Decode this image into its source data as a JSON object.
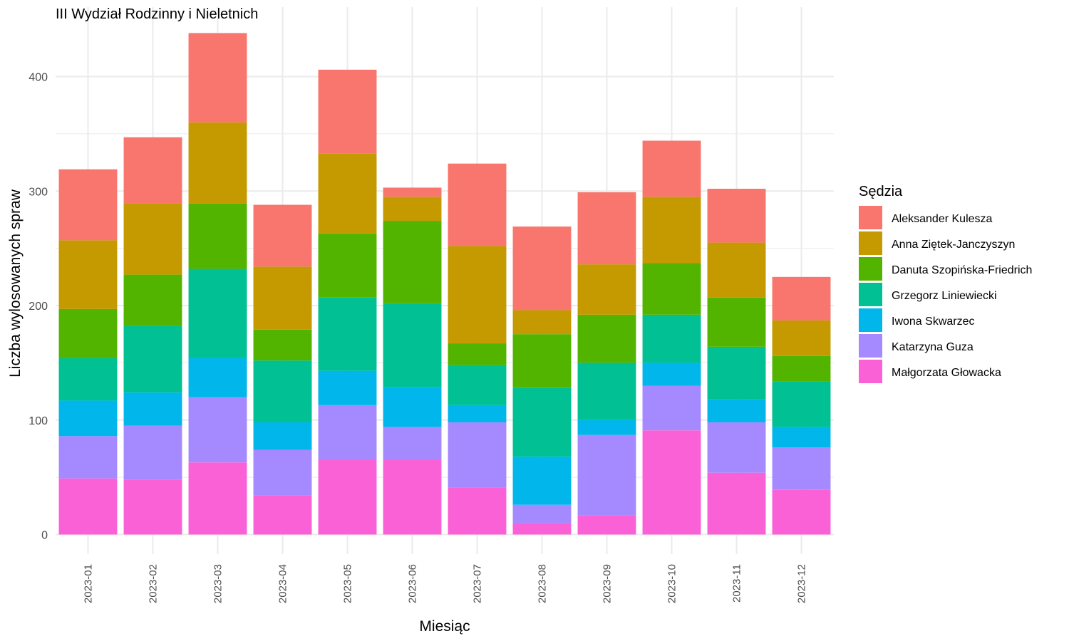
{
  "chart_data": {
    "type": "bar",
    "stacked": true,
    "title": "III Wydział Rodzinny i Nieletnich",
    "xlabel": "Miesiąc",
    "ylabel": "Liczba wylosowanych spraw",
    "ylim": [
      0,
      440
    ],
    "yticks": [
      0,
      100,
      200,
      300,
      400
    ],
    "legend_title": "Sędzia",
    "legend_position": "right",
    "grid": true,
    "categories": [
      "2023-01",
      "2023-02",
      "2023-03",
      "2023-04",
      "2023-05",
      "2023-06",
      "2023-07",
      "2023-08",
      "2023-09",
      "2023-10",
      "2023-11",
      "2023-12"
    ],
    "series": [
      {
        "name": "Aleksander Kulesza",
        "color": "#F8766D",
        "values": [
          62,
          58,
          78,
          54,
          73,
          8,
          72,
          73,
          63,
          49,
          47,
          38
        ]
      },
      {
        "name": "Anna Ziętek-Janczyszyn",
        "color": "#C49A00",
        "values": [
          60,
          62,
          71,
          55,
          70,
          21,
          85,
          21,
          44,
          58,
          48,
          31
        ]
      },
      {
        "name": "Danuta Szopińska-Friedrich",
        "color": "#53B400",
        "values": [
          43,
          45,
          57,
          27,
          56,
          72,
          19,
          47,
          42,
          45,
          43,
          22
        ]
      },
      {
        "name": "Grzegorz Liniewiecki",
        "color": "#00C094",
        "values": [
          37,
          58,
          78,
          54,
          64,
          73,
          35,
          60,
          50,
          42,
          46,
          40
        ]
      },
      {
        "name": "Iwona Skwarzec",
        "color": "#00B6EB",
        "values": [
          31,
          29,
          34,
          24,
          30,
          35,
          15,
          42,
          13,
          20,
          20,
          18
        ]
      },
      {
        "name": "Katarzyna Guza",
        "color": "#A58AFF",
        "values": [
          37,
          47,
          57,
          40,
          48,
          29,
          57,
          16,
          70,
          39,
          44,
          37
        ]
      },
      {
        "name": "Małgorzata Głowacka",
        "color": "#FB61D7",
        "values": [
          49,
          48,
          63,
          34,
          65,
          65,
          41,
          10,
          17,
          91,
          54,
          39
        ]
      }
    ]
  }
}
